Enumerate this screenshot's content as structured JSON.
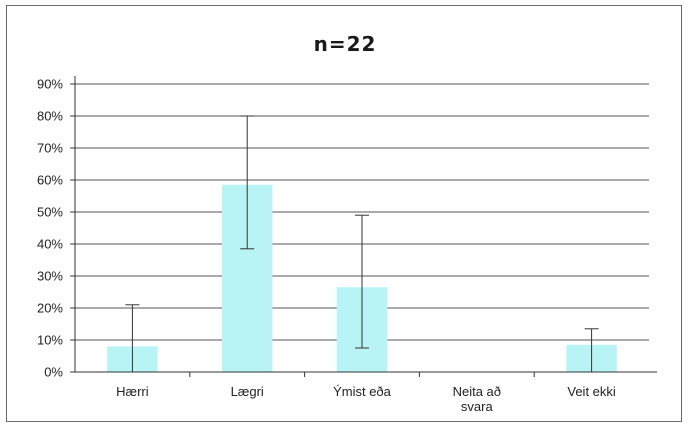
{
  "chart_data": {
    "type": "bar",
    "title": "n=22",
    "categories": [
      "Hærri",
      "Lægri",
      "Ýmist eða",
      "Neita að svara",
      "Veit ekki"
    ],
    "category_lines": [
      [
        "Hærri"
      ],
      [
        "Lægri"
      ],
      [
        "Ýmist eða"
      ],
      [
        "Neita að",
        "svara"
      ],
      [
        "Veit ekki"
      ]
    ],
    "values": [
      8,
      58.5,
      26.5,
      0,
      8.5
    ],
    "error_low": [
      0,
      38.5,
      7.5,
      0,
      0
    ],
    "error_high": [
      21,
      80,
      49,
      0,
      13.5
    ],
    "ylim": [
      0,
      90
    ],
    "yticks": [
      0,
      10,
      20,
      30,
      40,
      50,
      60,
      70,
      80,
      90
    ],
    "ytick_labels": [
      "0%",
      "10%",
      "20%",
      "30%",
      "40%",
      "50%",
      "60%",
      "70%",
      "80%",
      "90%"
    ],
    "xlabel": "",
    "ylabel": "",
    "grid": true,
    "bar_color": "#b8f4f6",
    "grid_color": "#555555",
    "error_color": "#333333"
  }
}
